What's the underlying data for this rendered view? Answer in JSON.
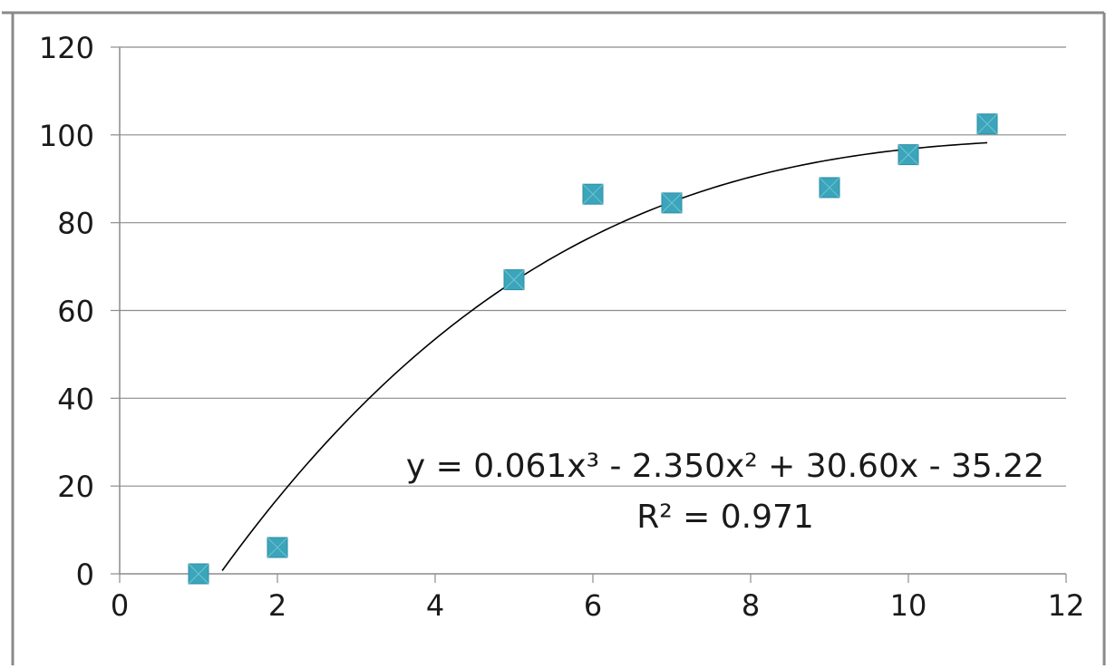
{
  "chart_data": {
    "type": "scatter",
    "title": "",
    "xlabel": "",
    "ylabel": "",
    "xlim": [
      0,
      12
    ],
    "ylim": [
      0,
      120
    ],
    "x_ticks": [
      "0",
      "2",
      "4",
      "6",
      "8",
      "10",
      "12"
    ],
    "y_ticks": [
      "0",
      "20",
      "40",
      "60",
      "80",
      "100",
      "120"
    ],
    "grid": {
      "horizontal": true,
      "vertical": false
    },
    "series": [
      {
        "marker": "square",
        "color": "#3aa5bb",
        "x": [
          1,
          2,
          5,
          6,
          7,
          9,
          10,
          11
        ],
        "y": [
          0,
          6,
          67,
          86.5,
          84.5,
          88,
          95.5,
          102.5
        ]
      }
    ],
    "trendline": {
      "type": "polynomial",
      "order": 3,
      "coefficients": [
        0.061,
        -2.35,
        30.6,
        -35.22
      ],
      "x_range": [
        1.3,
        11
      ],
      "color": "#000000"
    },
    "annotation": {
      "equation": "y = 0.061x³ - 2.350x² + 30.60x - 35.22",
      "r_squared": "R² = 0.971"
    }
  }
}
